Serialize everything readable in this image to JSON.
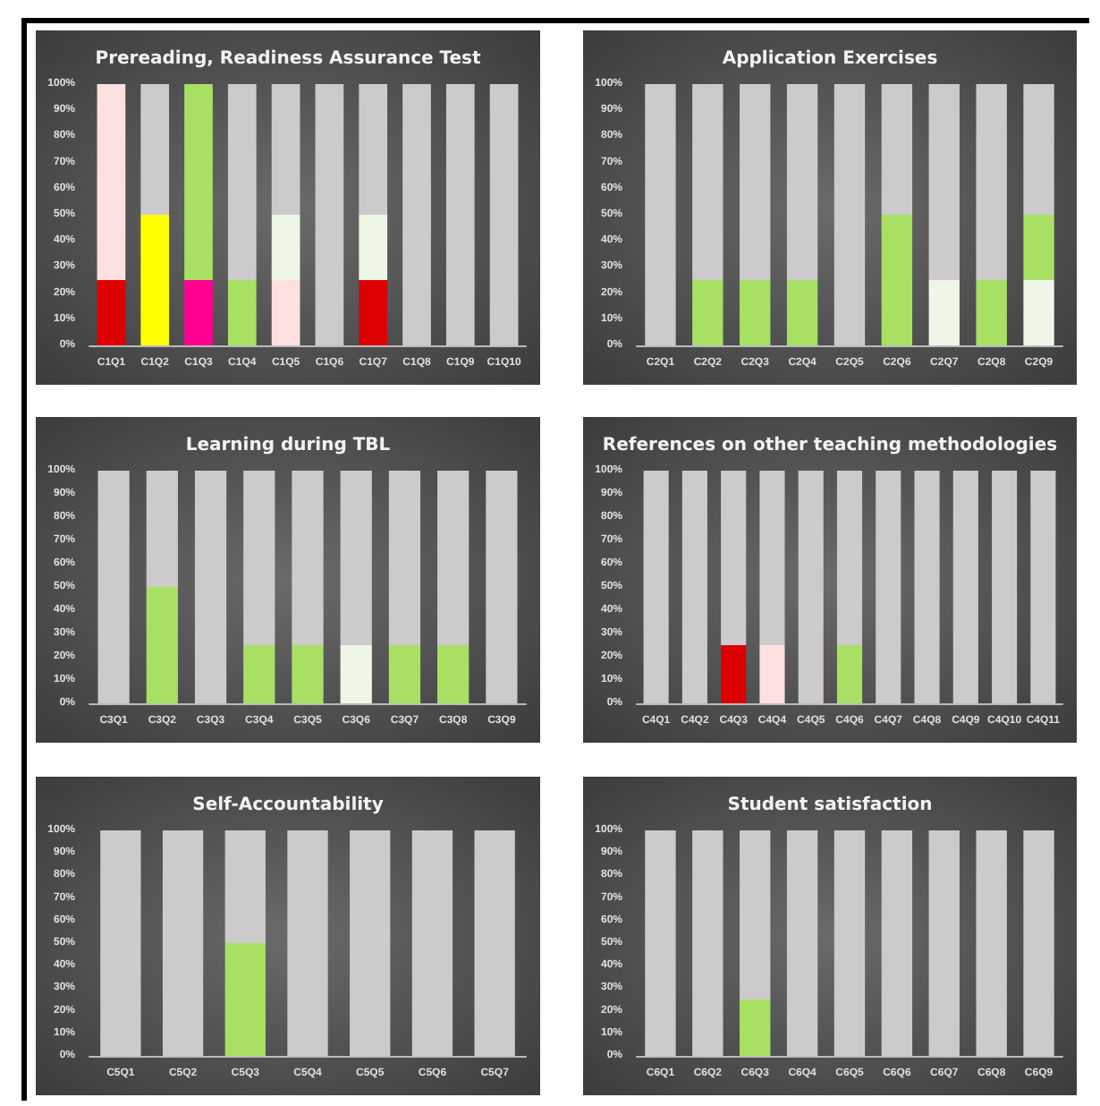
{
  "chart_data": [
    {
      "type": "bar",
      "title": "Prereading, Readiness Assurance Test",
      "stacked": true,
      "grid": false,
      "ylim": [
        0,
        100
      ],
      "yticks": [
        {
          "value": 0,
          "label": "0%"
        },
        {
          "value": 10,
          "label": "10%"
        },
        {
          "value": 20,
          "label": "20%"
        },
        {
          "value": 30,
          "label": "30%"
        },
        {
          "value": 40,
          "label": "40%"
        },
        {
          "value": 50,
          "label": "50%"
        },
        {
          "value": 60,
          "label": "60%"
        },
        {
          "value": 70,
          "label": "70%"
        },
        {
          "value": 80,
          "label": "80%"
        },
        {
          "value": 90,
          "label": "90%"
        },
        {
          "value": 100,
          "label": "100%"
        }
      ],
      "categories": [
        "C1Q1",
        "C1Q2",
        "C1Q3",
        "C1Q4",
        "C1Q5",
        "C1Q6",
        "C1Q7",
        "C1Q8",
        "C1Q9",
        "C1Q10"
      ],
      "series": [
        {
          "color": "#dd0000",
          "values": [
            25,
            null,
            null,
            null,
            null,
            null,
            25,
            null,
            null,
            null
          ]
        },
        {
          "color": "#ffff00",
          "values": [
            null,
            50,
            null,
            null,
            null,
            null,
            null,
            null,
            null,
            null
          ]
        },
        {
          "color": "#ff0090",
          "values": [
            null,
            null,
            25,
            null,
            null,
            null,
            null,
            null,
            null,
            null
          ]
        },
        {
          "color": "#a8e063",
          "values": [
            null,
            null,
            75,
            25,
            null,
            null,
            null,
            null,
            null,
            null
          ]
        },
        {
          "color": "#ffe0e0",
          "values": [
            75,
            null,
            null,
            null,
            25,
            null,
            null,
            null,
            null,
            null
          ]
        },
        {
          "color": "#eef6e8",
          "values": [
            null,
            null,
            null,
            null,
            25,
            null,
            25,
            null,
            null,
            null
          ]
        },
        {
          "color": "#cdcacb",
          "values": [
            null,
            50,
            null,
            75,
            50,
            100,
            50,
            100,
            100,
            100
          ]
        }
      ]
    },
    {
      "type": "bar",
      "title": "Application Exercises",
      "stacked": true,
      "grid": false,
      "ylim": [
        0,
        100
      ],
      "yticks": [
        {
          "value": 0,
          "label": "0%"
        },
        {
          "value": 10,
          "label": "10%"
        },
        {
          "value": 20,
          "label": "20%"
        },
        {
          "value": 30,
          "label": "30%"
        },
        {
          "value": 40,
          "label": "40%"
        },
        {
          "value": 50,
          "label": "50%"
        },
        {
          "value": 60,
          "label": "60%"
        },
        {
          "value": 70,
          "label": "70%"
        },
        {
          "value": 80,
          "label": "80%"
        },
        {
          "value": 90,
          "label": "90%"
        },
        {
          "value": 100,
          "label": "100%"
        }
      ],
      "categories": [
        "C2Q1",
        "C2Q2",
        "C2Q3",
        "C2Q4",
        "C2Q5",
        "C2Q6",
        "C2Q7",
        "C2Q8",
        "C2Q9"
      ],
      "series": [
        {
          "color": "#eef6e8",
          "values": [
            null,
            null,
            null,
            null,
            null,
            null,
            25,
            null,
            25
          ]
        },
        {
          "color": "#a8e063",
          "values": [
            null,
            25,
            25,
            25,
            null,
            50,
            null,
            25,
            25
          ]
        },
        {
          "color": "#cdcacb",
          "values": [
            100,
            75,
            75,
            75,
            100,
            50,
            75,
            75,
            50
          ]
        }
      ]
    },
    {
      "type": "bar",
      "title": "Learning during TBL",
      "stacked": true,
      "grid": false,
      "ylim": [
        0,
        100
      ],
      "yticks": [
        {
          "value": 0,
          "label": "0%"
        },
        {
          "value": 10,
          "label": "10%"
        },
        {
          "value": 20,
          "label": "20%"
        },
        {
          "value": 30,
          "label": "30%"
        },
        {
          "value": 40,
          "label": "40%"
        },
        {
          "value": 50,
          "label": "50%"
        },
        {
          "value": 60,
          "label": "60%"
        },
        {
          "value": 70,
          "label": "70%"
        },
        {
          "value": 80,
          "label": "80%"
        },
        {
          "value": 90,
          "label": "90%"
        },
        {
          "value": 100,
          "label": "100%"
        }
      ],
      "categories": [
        "C3Q1",
        "C3Q2",
        "C3Q3",
        "C3Q4",
        "C3Q5",
        "C3Q6",
        "C3Q7",
        "C3Q8",
        "C3Q9"
      ],
      "series": [
        {
          "color": "#a8e063",
          "values": [
            null,
            50,
            null,
            25,
            25,
            null,
            25,
            25,
            null
          ]
        },
        {
          "color": "#eef6e8",
          "values": [
            null,
            null,
            null,
            null,
            null,
            25,
            null,
            null,
            null
          ]
        },
        {
          "color": "#cdcacb",
          "values": [
            100,
            50,
            100,
            75,
            75,
            75,
            75,
            75,
            100
          ]
        }
      ]
    },
    {
      "type": "bar",
      "title": "References on other teaching methodologies",
      "stacked": true,
      "grid": false,
      "ylim": [
        0,
        100
      ],
      "yticks": [
        {
          "value": 0,
          "label": "0%"
        },
        {
          "value": 10,
          "label": "10%"
        },
        {
          "value": 20,
          "label": "20%"
        },
        {
          "value": 30,
          "label": "30%"
        },
        {
          "value": 40,
          "label": "40%"
        },
        {
          "value": 50,
          "label": "50%"
        },
        {
          "value": 60,
          "label": "60%"
        },
        {
          "value": 70,
          "label": "70%"
        },
        {
          "value": 80,
          "label": "80%"
        },
        {
          "value": 90,
          "label": "90%"
        },
        {
          "value": 100,
          "label": "100%"
        }
      ],
      "categories": [
        "C4Q1",
        "C4Q2",
        "C4Q3",
        "C4Q4",
        "C4Q5",
        "C4Q6",
        "C4Q7",
        "C4Q8",
        "C4Q9",
        "C4Q10",
        "C4Q11"
      ],
      "series": [
        {
          "color": "#dd0000",
          "values": [
            null,
            null,
            25,
            null,
            null,
            null,
            null,
            null,
            null,
            null,
            null
          ]
        },
        {
          "color": "#ffe0e0",
          "values": [
            null,
            null,
            null,
            25,
            null,
            null,
            null,
            null,
            null,
            null,
            null
          ]
        },
        {
          "color": "#a8e063",
          "values": [
            null,
            null,
            null,
            null,
            null,
            25,
            null,
            null,
            null,
            null,
            null
          ]
        },
        {
          "color": "#cdcacb",
          "values": [
            100,
            100,
            75,
            75,
            100,
            75,
            100,
            100,
            100,
            100,
            100
          ]
        }
      ]
    },
    {
      "type": "bar",
      "title": "Self-Accountability",
      "stacked": true,
      "grid": false,
      "ylim": [
        0,
        100
      ],
      "yticks": [
        {
          "value": 0,
          "label": "0%"
        },
        {
          "value": 10,
          "label": "10%"
        },
        {
          "value": 20,
          "label": "20%"
        },
        {
          "value": 30,
          "label": "30%"
        },
        {
          "value": 40,
          "label": "40%"
        },
        {
          "value": 50,
          "label": "50%"
        },
        {
          "value": 60,
          "label": "60%"
        },
        {
          "value": 70,
          "label": "70%"
        },
        {
          "value": 80,
          "label": "80%"
        },
        {
          "value": 90,
          "label": "90%"
        },
        {
          "value": 100,
          "label": "100%"
        }
      ],
      "categories": [
        "C5Q1",
        "C5Q2",
        "C5Q3",
        "C5Q4",
        "C5Q5",
        "C5Q6",
        "C5Q7"
      ],
      "series": [
        {
          "color": "#a8e063",
          "values": [
            null,
            null,
            50,
            null,
            null,
            null,
            null
          ]
        },
        {
          "color": "#cdcacb",
          "values": [
            100,
            100,
            50,
            100,
            100,
            100,
            100
          ]
        }
      ]
    },
    {
      "type": "bar",
      "title": "Student satisfaction",
      "stacked": true,
      "grid": false,
      "ylim": [
        0,
        100
      ],
      "yticks": [
        {
          "value": 0,
          "label": "0%"
        },
        {
          "value": 10,
          "label": "10%"
        },
        {
          "value": 20,
          "label": "20%"
        },
        {
          "value": 30,
          "label": "30%"
        },
        {
          "value": 40,
          "label": "40%"
        },
        {
          "value": 50,
          "label": "50%"
        },
        {
          "value": 60,
          "label": "60%"
        },
        {
          "value": 70,
          "label": "70%"
        },
        {
          "value": 80,
          "label": "80%"
        },
        {
          "value": 90,
          "label": "90%"
        },
        {
          "value": 100,
          "label": "100%"
        }
      ],
      "categories": [
        "C6Q1",
        "C6Q2",
        "C6Q3",
        "C6Q4",
        "C6Q5",
        "C6Q6",
        "C6Q7",
        "C6Q8",
        "C6Q9"
      ],
      "series": [
        {
          "color": "#a8e063",
          "values": [
            null,
            null,
            25,
            null,
            null,
            null,
            null,
            null,
            null
          ]
        },
        {
          "color": "#cdcacb",
          "values": [
            100,
            100,
            75,
            100,
            100,
            100,
            100,
            100,
            100
          ]
        }
      ]
    }
  ]
}
